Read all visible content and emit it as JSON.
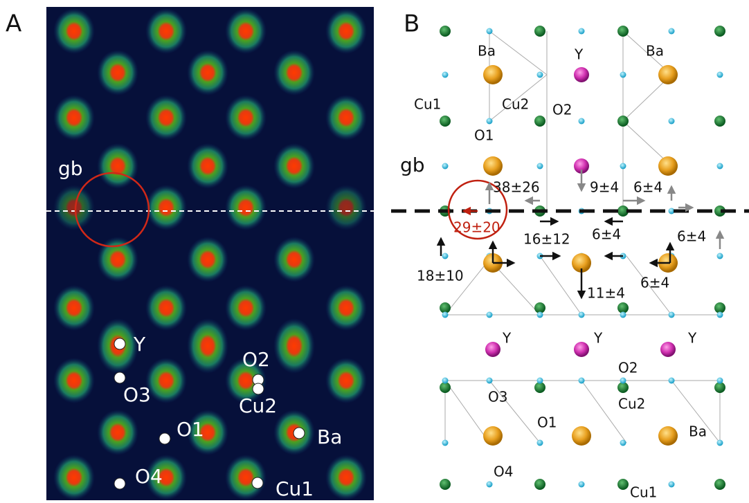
{
  "panel_a": {
    "letter": "A",
    "labels": [
      "gb",
      "Y",
      "O3",
      "O2",
      "Cu2",
      "O1",
      "Ba",
      "O4",
      "Cu1"
    ]
  },
  "panel_b": {
    "letter": "B",
    "labels": [
      "Ba",
      "Y",
      "Ba",
      "Cu1",
      "Cu2",
      "O2",
      "O1",
      "gb",
      "Y",
      "Y",
      "Y",
      "O2",
      "O3",
      "Cu2",
      "O1",
      "Ba",
      "O4",
      "Cu1"
    ],
    "displacements": [
      "38±26",
      "9±4",
      "6±4",
      "29±20",
      "16±12",
      "6±4",
      "6±4",
      "18±10",
      "11±4",
      "6±4"
    ]
  }
}
